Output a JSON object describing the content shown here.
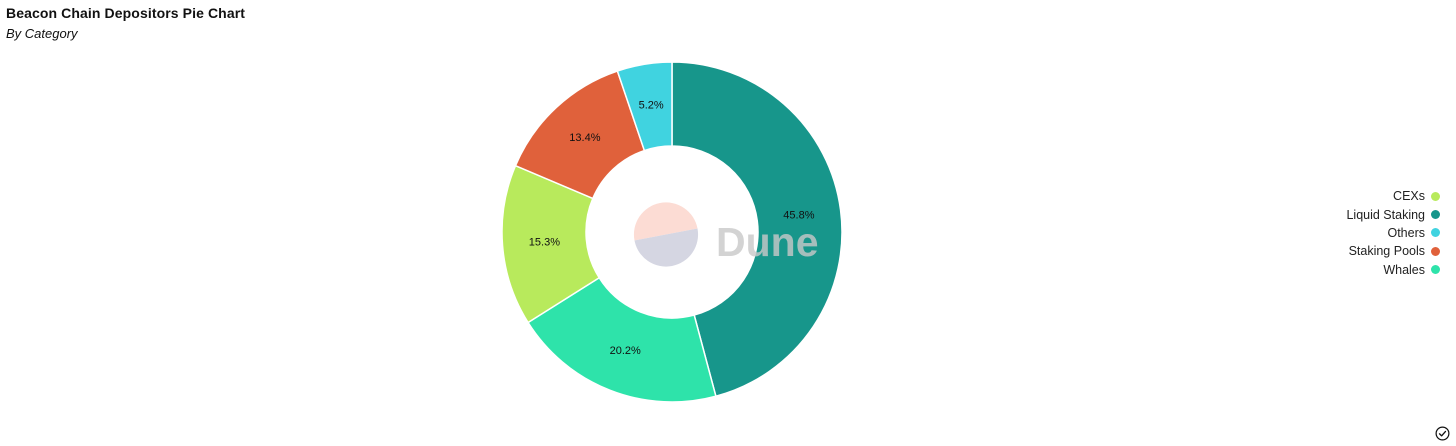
{
  "header": {
    "title": "Beacon Chain Depositors Pie Chart",
    "subtitle": "By Category"
  },
  "watermark": {
    "text": "Dune"
  },
  "chart_data": {
    "type": "pie",
    "title": "Beacon Chain Depositors Pie Chart",
    "subtitle": "By Category",
    "style": "donut",
    "slices": [
      {
        "name": "Liquid Staking",
        "value": 45.8,
        "label": "45.8%",
        "color": "#17968b"
      },
      {
        "name": "Whales",
        "value": 20.2,
        "label": "20.2%",
        "color": "#2ee3aa"
      },
      {
        "name": "CEXs",
        "value": 15.3,
        "label": "15.3%",
        "color": "#b8ea5c"
      },
      {
        "name": "Staking Pools",
        "value": 13.4,
        "label": "13.4%",
        "color": "#e0613b"
      },
      {
        "name": "Others",
        "value": 5.2,
        "label": "5.2%",
        "color": "#40d3e0"
      }
    ],
    "legend": {
      "placement": "right",
      "entries": [
        "CEXs",
        "Liquid Staking",
        "Others",
        "Staking Pools",
        "Whales"
      ]
    }
  }
}
